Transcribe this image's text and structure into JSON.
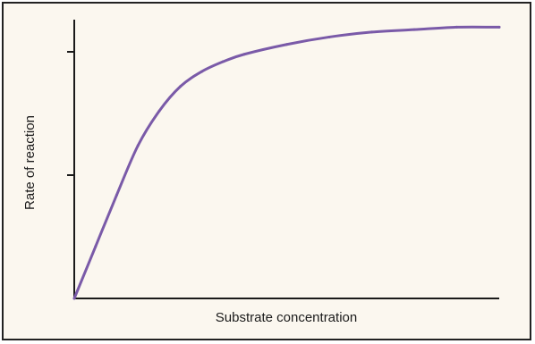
{
  "chart_data": {
    "type": "line",
    "title": "",
    "xlabel": "Substrate concentration",
    "ylabel": "Rate of reaction",
    "xlim": [
      0,
      10
    ],
    "ylim": [
      0,
      1.1
    ],
    "yticks": [
      0.5,
      1.0
    ],
    "grid": false,
    "series": [
      {
        "color": "#7a5aa8",
        "x": [
          0,
          0.5,
          1,
          1.5,
          2,
          2.5,
          3,
          3.5,
          4,
          5,
          6,
          7,
          8,
          9,
          10
        ],
        "y": [
          0,
          0.21,
          0.42,
          0.62,
          0.76,
          0.86,
          0.92,
          0.96,
          0.99,
          1.03,
          1.06,
          1.08,
          1.09,
          1.1,
          1.1
        ]
      }
    ]
  },
  "colors": {
    "background": "#fbf7ef",
    "axis": "#1a1a1a",
    "frame": "#222222"
  }
}
